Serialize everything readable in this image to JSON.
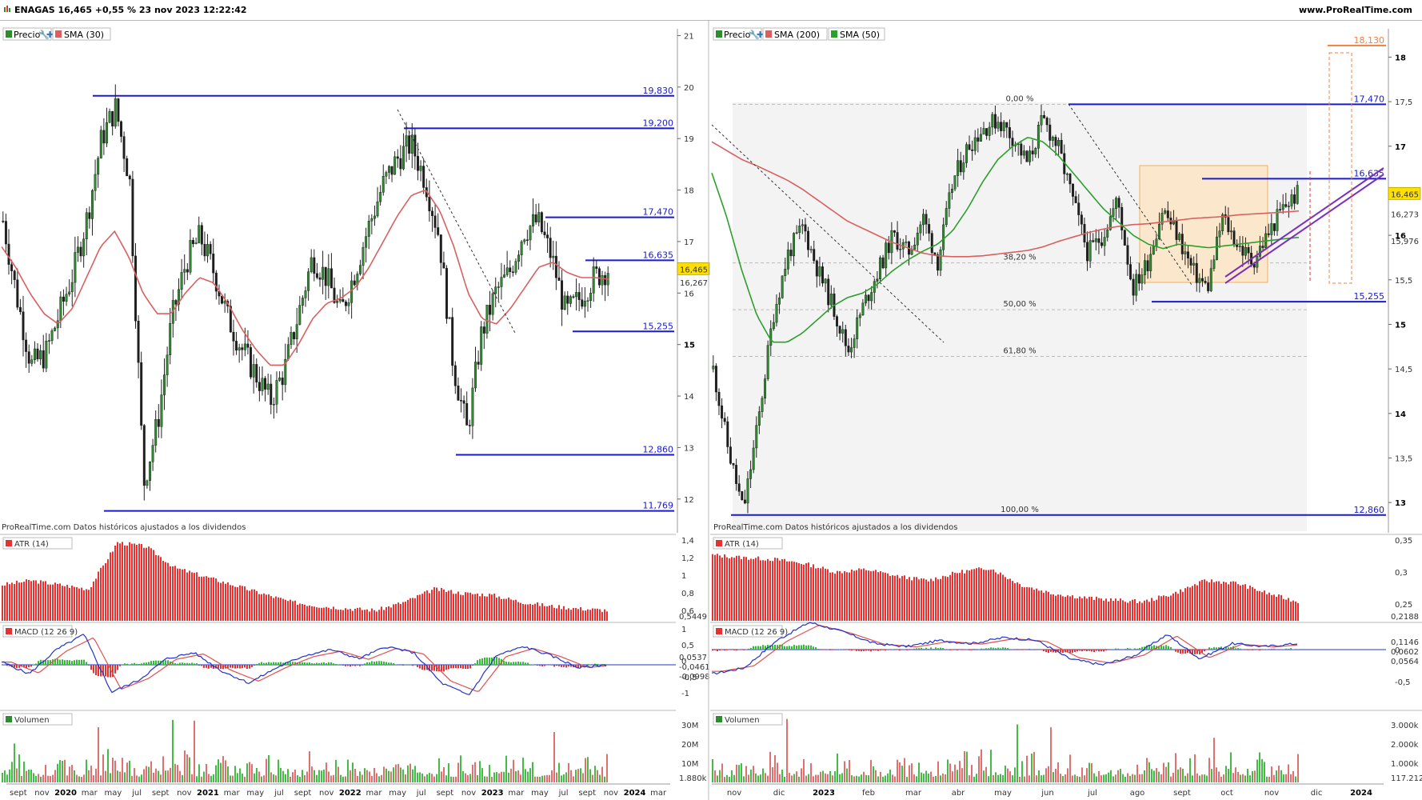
{
  "header": {
    "title": "ENAGAS 16,465 +0,55 % 23 nov 2023 12:22:42",
    "site": "www.ProRealTime.com"
  },
  "colors": {
    "level_line": "#1a1ad0",
    "sma_red": "#d96060",
    "sma_green": "#2ca02c",
    "candle_up": "#2e8b2e",
    "candle_down": "#1f1f1f",
    "atr_bar": "#e83030",
    "macd_line": "#2233cc",
    "signal_line": "#e05050",
    "hist_pos": "#33bb33",
    "hist_neg": "#dd3333",
    "vol_up": "#44bb44",
    "vol_down": "#e07070",
    "fib_fill": "#f3f3f3",
    "box_fill": "#fbe8cc",
    "box_border": "#f0b060",
    "trend_channel": "#7a2fbf",
    "target_line": "#f08040",
    "price_tag": "#ffe000"
  },
  "footer_note": "ProRealTime.com Datos históricos ajustados a los dividendos",
  "left_chart": {
    "legend": {
      "price": "Precio",
      "sma": "SMA (30)"
    },
    "price_axis": [
      21,
      20,
      19,
      18,
      17,
      16,
      15,
      14,
      13,
      12
    ],
    "ylim": [
      11.5,
      21.1
    ],
    "levels": [
      {
        "value": 19.83,
        "label": "19,830"
      },
      {
        "value": 19.2,
        "label": "19,200"
      },
      {
        "value": 17.47,
        "label": "17,470"
      },
      {
        "value": 16.635,
        "label": "16,635"
      },
      {
        "value": 15.255,
        "label": "15,255"
      },
      {
        "value": 12.86,
        "label": "12,860"
      },
      {
        "value": 11.769,
        "label": "11,769"
      }
    ],
    "last_price": {
      "value": 16.465,
      "label": "16,465"
    },
    "sma_value": {
      "value": 16.267,
      "label": "16,267"
    },
    "x_axis": [
      "sept",
      "nov",
      "2020",
      "mar",
      "may",
      "jul",
      "sept",
      "nov",
      "2021",
      "mar",
      "may",
      "jul",
      "sept",
      "nov",
      "2022",
      "mar",
      "may",
      "jul",
      "sept",
      "nov",
      "2023",
      "mar",
      "may",
      "jul",
      "sept",
      "nov",
      "2024",
      "mar"
    ],
    "atr": {
      "name": "ATR (14)",
      "axis": [
        "1,4",
        "1,2",
        "1",
        "0,8",
        "0,6"
      ],
      "value_label": "0,5449"
    },
    "macd": {
      "name": "MACD (12 26 9)",
      "axis": [
        "1",
        "0,5",
        "0",
        "-0,5",
        "-1"
      ],
      "labels": [
        "0,0537",
        "-0,0461",
        "-0,0998"
      ]
    },
    "volume": {
      "name": "Volumen",
      "axis": [
        "30M",
        "20M",
        "10M"
      ],
      "value_label": "1.880k"
    }
  },
  "right_chart": {
    "legend": {
      "price": "Precio",
      "sma200": "SMA (200)",
      "sma50": "SMA (50)"
    },
    "price_axis": [
      "18",
      "17,5",
      "17",
      "16,5",
      "16",
      "15,5",
      "15",
      "14,5",
      "14",
      "13,5",
      "13"
    ],
    "ylim": [
      12.75,
      18.3
    ],
    "levels": [
      {
        "value": 18.13,
        "label": "18,130"
      },
      {
        "value": 17.47,
        "label": "17,470"
      },
      {
        "value": 16.635,
        "label": "16,635"
      },
      {
        "value": 15.255,
        "label": "15,255"
      },
      {
        "value": 12.86,
        "label": "12,860"
      }
    ],
    "fib_labels": [
      {
        "value": 17.47,
        "label": "0,00 %"
      },
      {
        "value": 15.69,
        "label": "38,20 %"
      },
      {
        "value": 15.165,
        "label": "50,00 %"
      },
      {
        "value": 14.64,
        "label": "61,80 %"
      },
      {
        "value": 12.86,
        "label": "100,00 %"
      }
    ],
    "last_price": {
      "value": 16.465,
      "label": "16,465"
    },
    "sma200_value": {
      "value": 16.273,
      "label": "16,273"
    },
    "sma50_value": {
      "value": 15.976,
      "label": "15,976"
    },
    "x_axis": [
      "nov",
      "dic",
      "2023",
      "feb",
      "mar",
      "abr",
      "may",
      "jun",
      "jul",
      "ago",
      "sept",
      "oct",
      "nov",
      "dic",
      "2024"
    ],
    "atr": {
      "name": "ATR (14)",
      "axis": [
        "0,35",
        "0,3",
        "0,25"
      ],
      "value_label": "0,2188"
    },
    "macd": {
      "name": "MACD (12 26 9)",
      "axis": [
        "0",
        "-0,5"
      ],
      "labels": [
        "0,1146",
        "0,0602",
        "0,0564"
      ]
    },
    "volume": {
      "name": "Volumen",
      "axis": [
        "3.000k",
        "2.000k",
        "1.000k"
      ],
      "value_label": "117.212"
    }
  },
  "chart_data": [
    {
      "type": "candlestick",
      "title": "ENAGAS 16,465 +0,55 % 23 nov 2023 12:22:42",
      "period": "weekly",
      "series": [
        {
          "name": "Precio",
          "values": [
            17.4,
            15.9,
            14.6,
            14.8,
            15.6,
            16.4,
            17.5,
            19.0,
            19.6,
            18.2,
            12.3,
            13.5,
            15.5,
            16.6,
            17.1,
            16.4,
            15.5,
            14.9,
            14.4,
            13.9,
            14.5,
            15.6,
            16.7,
            16.3,
            15.6,
            16.4,
            17.3,
            18.1,
            18.6,
            18.9,
            18.2,
            17.1,
            14.6,
            13.3,
            15.2,
            16.0,
            16.4,
            17.2,
            17.4,
            16.7,
            15.6,
            15.9,
            16.3,
            16.465
          ]
        },
        {
          "name": "SMA (30)",
          "values": [
            16.9,
            16.5,
            16.0,
            15.6,
            15.4,
            15.7,
            16.3,
            16.9,
            17.2,
            16.7,
            16.0,
            15.6,
            15.6,
            16.0,
            16.3,
            16.2,
            15.8,
            15.3,
            14.9,
            14.6,
            14.6,
            15.0,
            15.5,
            15.8,
            15.9,
            16.1,
            16.5,
            17.0,
            17.5,
            17.9,
            18.0,
            17.6,
            16.9,
            16.0,
            15.5,
            15.4,
            15.7,
            16.1,
            16.5,
            16.6,
            16.4,
            16.3,
            16.3,
            16.267
          ]
        }
      ],
      "ylim": [
        11.5,
        21.1
      ]
    },
    {
      "type": "candlestick",
      "period": "daily",
      "series": [
        {
          "name": "Precio",
          "values": [
            14.5,
            13.6,
            12.9,
            13.9,
            15.1,
            15.8,
            16.1,
            15.6,
            15.2,
            14.7,
            15.2,
            15.6,
            16.0,
            15.8,
            16.2,
            15.7,
            16.6,
            17.0,
            17.2,
            17.3,
            17.1,
            16.8,
            17.3,
            17.0,
            16.4,
            15.8,
            16.0,
            16.4,
            15.4,
            15.7,
            16.3,
            16.0,
            15.6,
            15.4,
            16.2,
            15.9,
            15.7,
            16.0,
            16.3,
            16.465
          ]
        },
        {
          "name": "SMA (200)",
          "values": [
            17.05,
            16.95,
            16.85,
            16.78,
            16.7,
            16.62,
            16.52,
            16.4,
            16.28,
            16.16,
            16.08,
            16.0,
            15.92,
            15.86,
            15.8,
            15.77,
            15.76,
            15.76,
            15.77,
            15.79,
            15.81,
            15.83,
            15.87,
            15.93,
            15.98,
            16.03,
            16.07,
            16.1,
            16.12,
            16.13,
            16.15,
            16.17,
            16.19,
            16.2,
            16.21,
            16.23,
            16.24,
            16.25,
            16.26,
            16.273
          ]
        },
        {
          "name": "SMA (50)",
          "values": [
            16.7,
            16.2,
            15.6,
            15.1,
            14.8,
            14.8,
            14.9,
            15.05,
            15.2,
            15.3,
            15.35,
            15.45,
            15.6,
            15.72,
            15.82,
            15.9,
            16.05,
            16.3,
            16.6,
            16.85,
            17.0,
            17.1,
            17.05,
            16.9,
            16.7,
            16.5,
            16.3,
            16.15,
            16.0,
            15.9,
            15.85,
            15.9,
            15.88,
            15.86,
            15.88,
            15.9,
            15.92,
            15.94,
            15.96,
            15.976
          ]
        }
      ],
      "ylim": [
        12.75,
        18.3
      ]
    }
  ]
}
